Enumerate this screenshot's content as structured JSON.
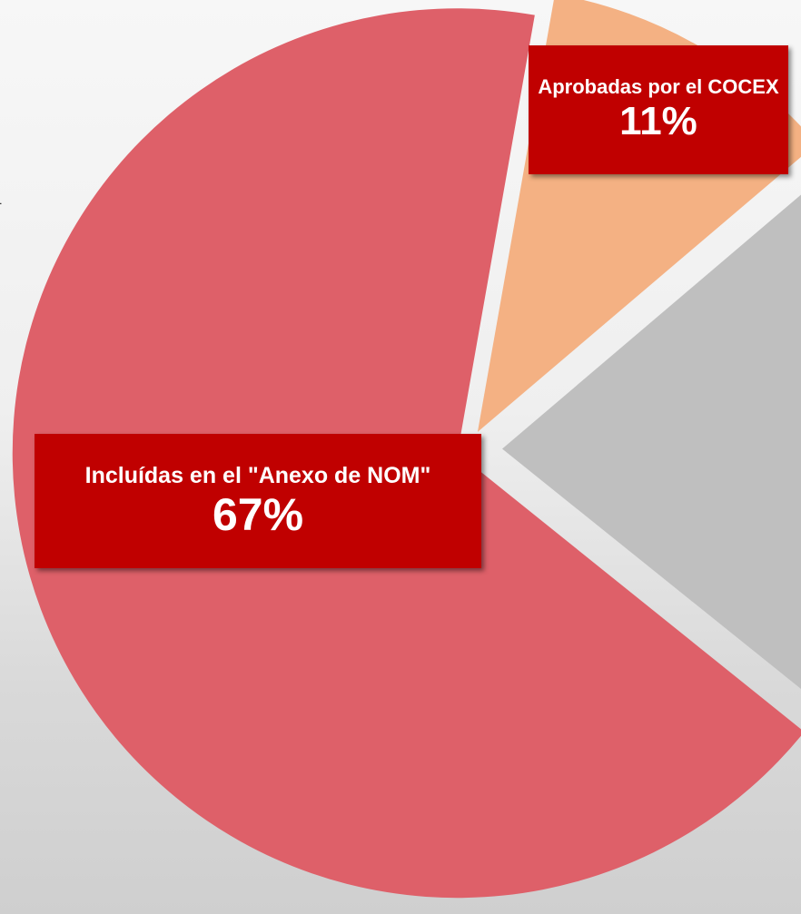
{
  "chart_data": {
    "type": "pie",
    "annotation": "4",
    "categories": [
      "Aprobadas por el COCEX",
      null,
      "Incluídas en el \"Anexo de NOM\""
    ],
    "values": [
      11,
      22,
      67
    ],
    "value_labels": [
      "11%",
      null,
      "67%"
    ],
    "colors": [
      "#f4b183",
      "#bfbfbf",
      "#de6069"
    ]
  }
}
